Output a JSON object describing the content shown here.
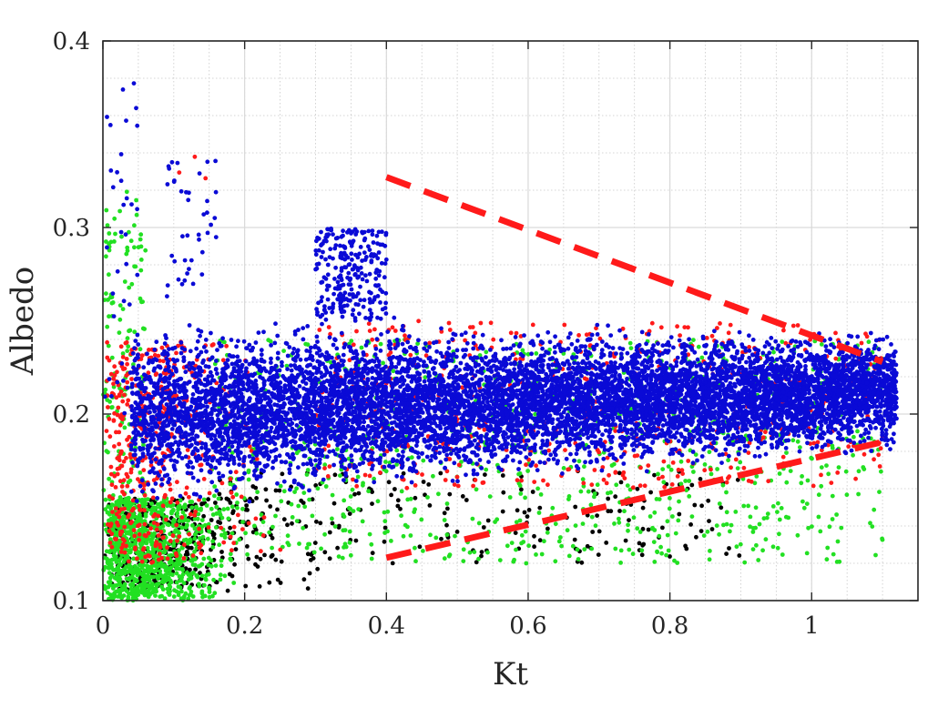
{
  "chart_data": {
    "type": "scatter",
    "title": "",
    "xlabel": "Kt",
    "ylabel": "Albedo",
    "xlim": [
      0,
      1.15
    ],
    "ylim": [
      0.1,
      0.4
    ],
    "xticks": [
      0,
      0.2,
      0.4,
      0.6,
      0.8,
      1
    ],
    "xtick_labels": [
      "0",
      "0.2",
      "0.4",
      "0.6",
      "0.8",
      "1"
    ],
    "yticks": [
      0.1,
      0.2,
      0.3,
      0.4
    ],
    "ytick_labels": [
      "0.1",
      "0.2",
      "0.3",
      "0.4"
    ],
    "grid": true,
    "minor_grid": true,
    "legend": "none",
    "colors": {
      "black": "#000000",
      "green": "#22e022",
      "red": "#ff1a1a",
      "blue": "#0a0ad6",
      "bound_line": "#ff1a1a"
    },
    "series": [
      {
        "color": "#000000",
        "clusters": [
          {
            "x": [
              0.0,
              0.4
            ],
            "y": [
              0.105,
              0.155
            ],
            "n": 350,
            "peak": 0.08
          },
          {
            "x": [
              0.15,
              0.9
            ],
            "y": [
              0.12,
              0.17
            ],
            "n": 200,
            "upper": false
          }
        ]
      },
      {
        "color": "#22e022",
        "clusters": [
          {
            "x": [
              0.0,
              0.25
            ],
            "y": [
              0.1,
              0.155
            ],
            "n": 900,
            "peak": 0.04
          },
          {
            "x": [
              0.0,
              0.06
            ],
            "y": [
              0.1,
              0.32
            ],
            "n": 180
          },
          {
            "x": [
              0.15,
              1.1
            ],
            "y": [
              0.12,
              0.24
            ],
            "n": 900
          }
        ]
      },
      {
        "color": "#ff1a1a",
        "clusters": [
          {
            "x": [
              0.0,
              0.3
            ],
            "y": [
              0.12,
              0.24
            ],
            "n": 450,
            "peak": 0.07
          },
          {
            "x": [
              0.3,
              1.1
            ],
            "y": [
              0.16,
              0.25
            ],
            "n": 500
          },
          {
            "x": [
              0.1,
              0.15
            ],
            "y": [
              0.32,
              0.355
            ],
            "n": 3
          }
        ]
      },
      {
        "color": "#0a0ad6",
        "clusters": [
          {
            "x": [
              0.04,
              1.12
            ],
            "y": [
              0.13,
              0.25
            ],
            "n": 9000,
            "wedge": true
          },
          {
            "x": [
              0.3,
              0.4
            ],
            "y": [
              0.25,
              0.3
            ],
            "n": 250
          },
          {
            "x": [
              0.0,
              0.05
            ],
            "y": [
              0.2,
              0.38
            ],
            "n": 40
          },
          {
            "x": [
              0.09,
              0.16
            ],
            "y": [
              0.26,
              0.34
            ],
            "n": 40
          }
        ]
      }
    ],
    "bounds": [
      {
        "x": [
          0.4,
          1.1
        ],
        "y": [
          0.327,
          0.228
        ]
      },
      {
        "x": [
          0.4,
          1.1
        ],
        "y": [
          0.123,
          0.185
        ]
      }
    ]
  }
}
